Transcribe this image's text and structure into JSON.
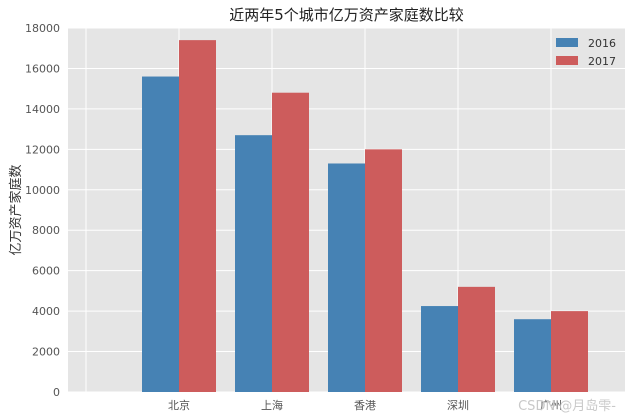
{
  "chart_data": {
    "type": "bar",
    "title": "近两年5个城市亿万资产家庭数比较",
    "xlabel": "",
    "ylabel": "亿万资产家庭数",
    "categories": [
      "北京",
      "上海",
      "香港",
      "深圳",
      "广州"
    ],
    "series": [
      {
        "name": "2016",
        "values": [
          15600,
          12700,
          11300,
          4250,
          3600
        ],
        "color": "#4682b4"
      },
      {
        "name": "2017",
        "values": [
          17400,
          14800,
          12000,
          5200,
          4000
        ],
        "color": "#cd5c5c"
      }
    ],
    "ylim": [
      0,
      18000
    ],
    "yticks": [
      0,
      2000,
      4000,
      6000,
      8000,
      10000,
      12000,
      14000,
      16000,
      18000
    ],
    "grid": true,
    "legend": "top-right",
    "background": "#e5e5e5"
  },
  "watermark": "CSDN @月岛雫-"
}
